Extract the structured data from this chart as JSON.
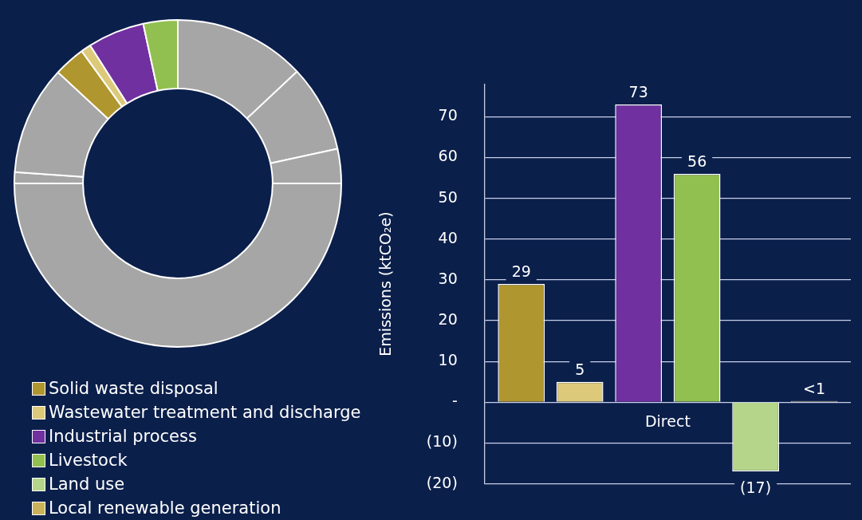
{
  "chart_data": [
    {
      "type": "donut",
      "categories": [
        null,
        null,
        null,
        null,
        null,
        null,
        null,
        null,
        null,
        null
      ],
      "values": [
        13,
        8.6,
        3.4,
        50,
        1.1,
        10.8,
        3.1,
        1,
        5.6,
        3.4
      ],
      "colors": [
        "#a6a6a6",
        "#a6a6a6",
        "#a6a6a6",
        "#a6a6a6",
        "#a6a6a6",
        "#a6a6a6",
        "#b0962f",
        "#ddc97a",
        "#7030a0",
        "#92c050"
      ],
      "legend": false
    },
    {
      "type": "bar",
      "ylabel": "Emissions (ktCO₂e)",
      "categories": [
        "Direct"
      ],
      "series": [
        {
          "name": "Solid waste disposal",
          "color": "#b0962f",
          "values": [
            29
          ],
          "value_labels": [
            "29"
          ]
        },
        {
          "name": "Wastewater treatment and discharge",
          "color": "#ddc97a",
          "values": [
            5
          ],
          "value_labels": [
            "5"
          ]
        },
        {
          "name": "Industrial process",
          "color": "#7030a0",
          "values": [
            73
          ],
          "value_labels": [
            "73"
          ]
        },
        {
          "name": "Livestock",
          "color": "#92c050",
          "values": [
            56
          ],
          "value_labels": [
            "56"
          ]
        },
        {
          "name": "Land use",
          "color": "#b5d68a",
          "values": [
            -17
          ],
          "value_labels": [
            "(17)"
          ]
        },
        {
          "name": "Local renewable generation",
          "color": "#c9b25a",
          "values": [
            0.3
          ],
          "value_labels": [
            "<1"
          ]
        }
      ],
      "ylim": [
        -20,
        78
      ],
      "yticks": [
        {
          "value": -20,
          "label": "(20)"
        },
        {
          "value": -10,
          "label": "(10)"
        },
        {
          "value": 0,
          "label": "-"
        },
        10,
        20,
        30,
        40,
        50,
        60,
        70
      ],
      "grid": "y",
      "legend": "bottom left"
    }
  ]
}
